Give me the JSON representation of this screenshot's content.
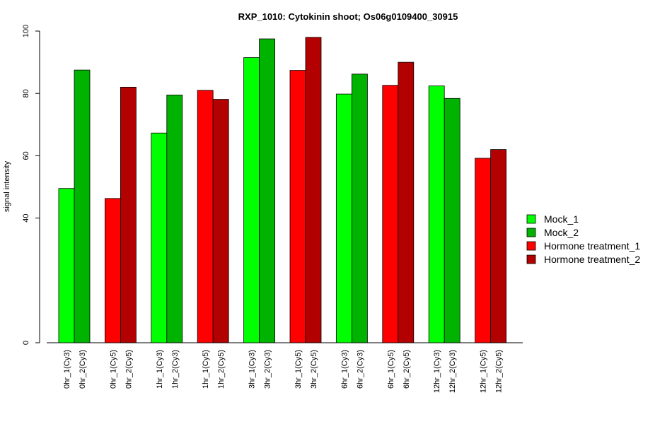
{
  "chart_data": {
    "type": "bar",
    "title": "RXP_1010: Cytokinin shoot; Os06g0109400_30915",
    "xlabel": "",
    "ylabel": "signal intensity",
    "ylim": [
      0,
      100
    ],
    "yticks": [
      0,
      40,
      60,
      80,
      100
    ],
    "grid": false,
    "legend_position": "right",
    "series_names": [
      "Mock_1",
      "Mock_2",
      "Hormone treatment_1",
      "Hormone treatment_2"
    ],
    "colors": {
      "Mock_1": "#00ff00",
      "Mock_2": "#00b300",
      "Hormone treatment_1": "#ff0000",
      "Hormone treatment_2": "#b30000"
    },
    "bars": [
      {
        "label": "0hr_1(Cy3)",
        "series": "Mock_1",
        "value": 49.5
      },
      {
        "label": "0hr_2(Cy3)",
        "series": "Mock_2",
        "value": 87.5
      },
      {
        "label": "0hr_1(Cy5)",
        "series": "Hormone treatment_1",
        "value": 46.3
      },
      {
        "label": "0hr_2(Cy5)",
        "series": "Hormone treatment_2",
        "value": 82.0
      },
      {
        "label": "1hr_1(Cy3)",
        "series": "Mock_1",
        "value": 67.3
      },
      {
        "label": "1hr_2(Cy3)",
        "series": "Mock_2",
        "value": 79.5
      },
      {
        "label": "1hr_1(Cy5)",
        "series": "Hormone treatment_1",
        "value": 81.0
      },
      {
        "label": "1hr_2(Cy5)",
        "series": "Hormone treatment_2",
        "value": 78.1
      },
      {
        "label": "3hr_1(Cy3)",
        "series": "Mock_1",
        "value": 91.5
      },
      {
        "label": "3hr_2(Cy3)",
        "series": "Mock_2",
        "value": 97.5
      },
      {
        "label": "3hr_1(Cy5)",
        "series": "Hormone treatment_1",
        "value": 87.4
      },
      {
        "label": "3hr_2(Cy5)",
        "series": "Hormone treatment_2",
        "value": 98.0
      },
      {
        "label": "6hr_1(Cy3)",
        "series": "Mock_1",
        "value": 79.8
      },
      {
        "label": "6hr_2(Cy3)",
        "series": "Mock_2",
        "value": 86.2
      },
      {
        "label": "6hr_1(Cy5)",
        "series": "Hormone treatment_1",
        "value": 82.6
      },
      {
        "label": "6hr_2(Cy5)",
        "series": "Hormone treatment_2",
        "value": 90.0
      },
      {
        "label": "12hr_1(Cy3)",
        "series": "Mock_1",
        "value": 82.4
      },
      {
        "label": "12hr_2(Cy3)",
        "series": "Mock_2",
        "value": 78.4
      },
      {
        "label": "12hr_1(Cy5)",
        "series": "Hormone treatment_1",
        "value": 59.2
      },
      {
        "label": "12hr_2(Cy5)",
        "series": "Hormone treatment_2",
        "value": 62.0
      }
    ]
  }
}
